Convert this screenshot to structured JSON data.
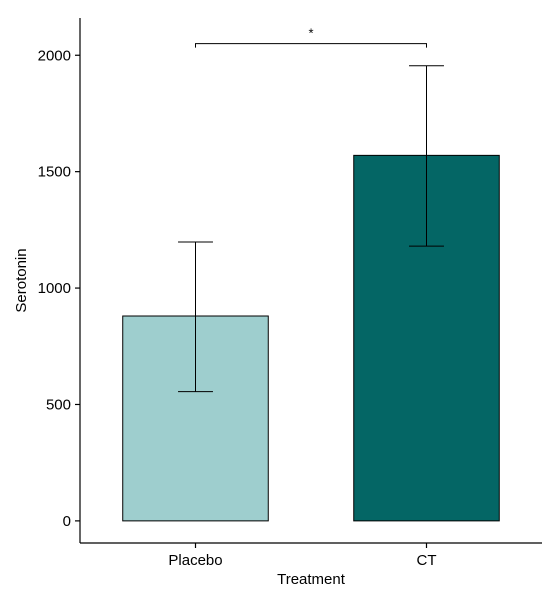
{
  "chart_data": {
    "type": "bar",
    "categories": [
      "Placebo",
      "CT"
    ],
    "values": [
      880,
      1570
    ],
    "error_low": [
      555,
      1180
    ],
    "error_high": [
      1198,
      1955
    ],
    "colors": [
      "#9ecece",
      "#046665"
    ],
    "xlabel": "Treatment",
    "ylabel": "Serotonin",
    "yticks": [
      0,
      500,
      1000,
      1500,
      2000
    ],
    "ylim": [
      -95,
      2160
    ],
    "grid": false,
    "legend": "none",
    "significance": {
      "from": 0,
      "to": 1,
      "y": 2050,
      "label": "*"
    }
  }
}
